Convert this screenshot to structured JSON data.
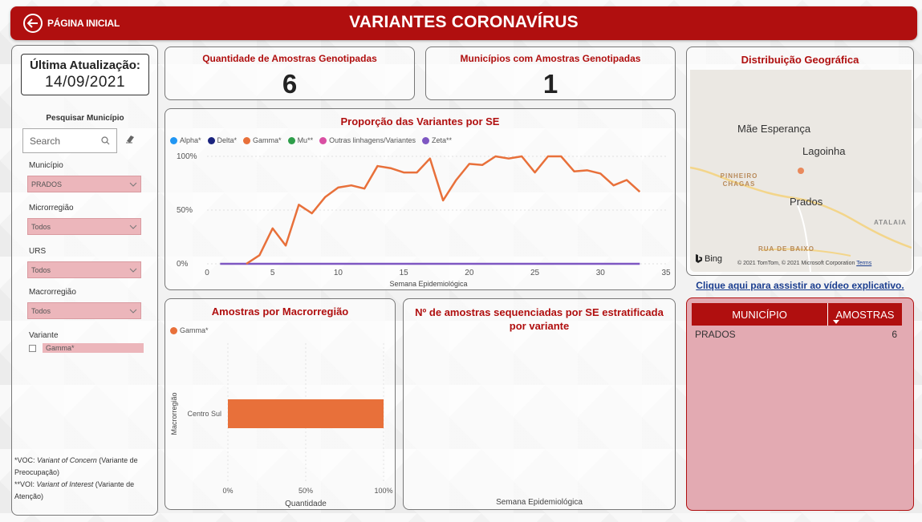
{
  "header": {
    "home_label": "PÁGINA INICIAL",
    "title": "VARIANTES CORONAVÍRUS",
    "accent": "#b00f0f"
  },
  "filters": {
    "update_title": "Última Atualização:",
    "update_date": "14/09/2021",
    "search_title": "Pesquisar Município",
    "search_placeholder": "Search",
    "municipio_label": "Município",
    "municipio_value": "PRADOS",
    "microrregiao_label": "Microrregião",
    "microrregiao_value": "Todos",
    "urs_label": "URS",
    "urs_value": "Todos",
    "macrorregiao_label": "Macrorregião",
    "macrorregiao_value": "Todos",
    "variante_label": "Variante",
    "variante_option": "Gamma*"
  },
  "footnote": {
    "voc_prefix": "*VOC: ",
    "voc_term": "Variant of Concern",
    "voc_suffix": " (Variante de Preocupação)",
    "voi_prefix": "**VOI: ",
    "voi_term": "Variant of Interest",
    "voi_suffix": " (Variante de Atenção)"
  },
  "kpis": {
    "amostras_title": "Quantidade de Amostras Genotipadas",
    "amostras_value": "6",
    "municipios_title": "Municípios com Amostras Genotipadas",
    "municipios_value": "1"
  },
  "line_chart_title": "Proporção das Variantes por SE",
  "bar_chart_title": "Amostras por Macrorregião",
  "seq_chart_title": "Nº de amostras sequenciadas por SE estratificada por variante",
  "seq_chart_xlabel": "Semana Epidemiológica",
  "chart_data": [
    {
      "type": "line",
      "title": "Proporção das Variantes por SE",
      "xlabel": "Semana Epidemiológica",
      "ylabel": "",
      "xlim": [
        0,
        35
      ],
      "ylim": [
        0,
        100
      ],
      "xticks": [
        0,
        5,
        10,
        15,
        20,
        25,
        30,
        35
      ],
      "yticks": [
        "0%",
        "50%",
        "100%"
      ],
      "legend": [
        {
          "name": "Alpha*",
          "color": "#2196f3"
        },
        {
          "name": "Delta*",
          "color": "#1a237e"
        },
        {
          "name": "Gamma*",
          "color": "#e8703a"
        },
        {
          "name": "Mu**",
          "color": "#2e9e4a"
        },
        {
          "name": "Outras linhagens/Variantes",
          "color": "#d94fa3"
        },
        {
          "name": "Zeta**",
          "color": "#7e57c2"
        }
      ],
      "series": [
        {
          "name": "Gamma*",
          "color": "#e8703a",
          "x": [
            3,
            4,
            5,
            6,
            7,
            8,
            9,
            10,
            11,
            12,
            13,
            14,
            15,
            16,
            17,
            18,
            19,
            20,
            21,
            22,
            23,
            24,
            25,
            26,
            27,
            28,
            29,
            30,
            31,
            32,
            33
          ],
          "y": [
            0,
            8,
            33,
            17,
            55,
            47,
            62,
            71,
            73,
            70,
            91,
            89,
            85,
            85,
            98,
            59,
            78,
            93,
            92,
            100,
            98,
            100,
            85,
            100,
            100,
            86,
            87,
            84,
            73,
            78,
            67
          ]
        },
        {
          "name": "Zeta**",
          "color": "#7e57c2",
          "x": [
            1,
            33
          ],
          "y": [
            0,
            0
          ]
        }
      ]
    },
    {
      "type": "bar",
      "orientation": "horizontal",
      "title": "Amostras por Macrorregião",
      "xlabel": "Quantidade",
      "ylabel": "Macrorregião",
      "xticks": [
        "0%",
        "50%",
        "100%"
      ],
      "categories": [
        "Centro Sul"
      ],
      "series": [
        {
          "name": "Gamma*",
          "color": "#e8703a",
          "values": [
            100
          ]
        }
      ]
    }
  ],
  "map": {
    "title": "Distribuição Geográfica",
    "places": [
      "Mãe Esperança",
      "Lagoinha",
      "Prados"
    ],
    "road_labels": [
      "PINHEIRO CHAGAS",
      "ATALAIA",
      "RUA DE BAIXO"
    ],
    "bing": "Bing",
    "copyright": "© 2021 TomTom, © 2021 Microsoft Corporation",
    "terms": "Terms"
  },
  "video_link": "Clique aqui para assistir ao vídeo explicativo.",
  "table": {
    "col1": "MUNICÍPIO",
    "col2": "AMOSTRAS",
    "rows": [
      {
        "municipio": "PRADOS",
        "amostras": "6"
      }
    ]
  }
}
